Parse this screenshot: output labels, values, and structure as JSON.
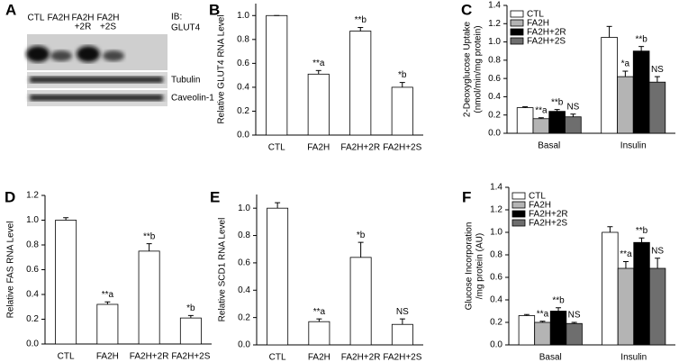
{
  "blot": {
    "panel": "A",
    "lanes": [
      [
        "CTL"
      ],
      [
        "FA2H"
      ],
      [
        "FA2H",
        "+2R"
      ],
      [
        "FA2H",
        "+2S"
      ]
    ],
    "ib": "IB:",
    "rows": [
      "GLUT4",
      "Tubulin",
      "Caveolin-1"
    ]
  },
  "chart_data": [
    {
      "type": "bar",
      "panel": "B",
      "ylabel": [
        "Relative GLUT4 RNA Level"
      ],
      "categories": [
        "CTL",
        "FA2H",
        "FA2H+2R",
        "FA2H+2S"
      ],
      "values": [
        1.0,
        0.51,
        0.87,
        0.4
      ],
      "errors": [
        0.0,
        0.03,
        0.03,
        0.04
      ],
      "bar_labels": [
        null,
        "**a",
        "**b",
        "*b"
      ],
      "color": "#ffffff",
      "ylim": [
        0,
        1.1
      ],
      "yticks": [
        {
          "value": 0,
          "label": "0.0"
        },
        0.2,
        0.4,
        0.6,
        0.8,
        {
          "value": 1,
          "label": "1.0"
        }
      ]
    },
    {
      "type": "grouped_bar",
      "panel": "C",
      "ylabel": [
        "2-Deoxyglucose Uptake",
        "(nmol/min/mg protein)"
      ],
      "categories": [
        "Basal",
        "Insulin"
      ],
      "series": [
        {
          "name": "CTL",
          "color": "#ffffff",
          "values": [
            0.28,
            1.05
          ],
          "errors": [
            0.01,
            0.12
          ],
          "bar_labels": [
            null,
            null
          ]
        },
        {
          "name": "FA2H",
          "color": "#b4b4b4",
          "values": [
            0.16,
            0.62
          ],
          "errors": [
            0.01,
            0.06
          ],
          "bar_labels": [
            "**a",
            "*a"
          ]
        },
        {
          "name": "FA2H+2R",
          "color": "#000000",
          "values": [
            0.24,
            0.9
          ],
          "errors": [
            0.02,
            0.05
          ],
          "bar_labels": [
            "**b",
            "**b"
          ]
        },
        {
          "name": "FA2H+2S",
          "color": "#6e6e6e",
          "values": [
            0.18,
            0.56
          ],
          "errors": [
            0.03,
            0.06
          ],
          "bar_labels": [
            "NS",
            "NS"
          ]
        }
      ],
      "legend": "upper left",
      "ylim": [
        0,
        1.4
      ],
      "yticks": [
        {
          "value": 0,
          "label": "0.0"
        },
        0.2,
        0.4,
        0.6,
        0.8,
        {
          "value": 1,
          "label": "1.0"
        },
        1.2,
        1.4
      ]
    },
    {
      "type": "bar",
      "panel": "D",
      "ylabel": [
        "Relative FAS RNA Level"
      ],
      "categories": [
        "CTL",
        "FA2H",
        "FA2H+2R",
        "FA2H+2S"
      ],
      "values": [
        1.0,
        0.32,
        0.75,
        0.21
      ],
      "errors": [
        0.02,
        0.02,
        0.06,
        0.02
      ],
      "bar_labels": [
        null,
        "**a",
        "**b",
        "*b"
      ],
      "color": "#ffffff",
      "ylim": [
        0,
        1.2
      ],
      "yticks": [
        {
          "value": 0,
          "label": "0.0"
        },
        0.2,
        0.4,
        0.6,
        0.8,
        {
          "value": 1,
          "label": "1.0"
        },
        1.2
      ]
    },
    {
      "type": "bar",
      "panel": "E",
      "ylabel": [
        "Relative SCD1 RNA Level"
      ],
      "categories": [
        "CTL",
        "FA2H",
        "FA2H+2R",
        "FA2H+2S"
      ],
      "values": [
        1.0,
        0.17,
        0.64,
        0.15
      ],
      "errors": [
        0.04,
        0.02,
        0.11,
        0.04
      ],
      "bar_labels": [
        null,
        "**a",
        "*b",
        "NS"
      ],
      "color": "#ffffff",
      "ylim": [
        0,
        1.1
      ],
      "yticks": [
        {
          "value": 0,
          "label": "0.0"
        },
        0.2,
        0.4,
        0.6,
        0.8,
        {
          "value": 1,
          "label": "1.0"
        }
      ]
    },
    {
      "type": "grouped_bar",
      "panel": "F",
      "ylabel": [
        "Glucose Incorporation",
        "/mg protein (AU)"
      ],
      "categories": [
        "Basal",
        "Insulin"
      ],
      "series": [
        {
          "name": "CTL",
          "color": "#ffffff",
          "values": [
            0.26,
            1.0
          ],
          "errors": [
            0.01,
            0.05
          ],
          "bar_labels": [
            null,
            null
          ]
        },
        {
          "name": "FA2H",
          "color": "#b4b4b4",
          "values": [
            0.2,
            0.68
          ],
          "errors": [
            0.01,
            0.06
          ],
          "bar_labels": [
            "**a",
            "**a"
          ]
        },
        {
          "name": "FA2H+2R",
          "color": "#000000",
          "values": [
            0.3,
            0.91
          ],
          "errors": [
            0.03,
            0.04
          ],
          "bar_labels": [
            "**b",
            "**b"
          ]
        },
        {
          "name": "FA2H+2S",
          "color": "#6e6e6e",
          "values": [
            0.19,
            0.68
          ],
          "errors": [
            0.01,
            0.09
          ],
          "bar_labels": [
            "NS",
            "NS"
          ]
        }
      ],
      "legend": "upper left",
      "ylim": [
        0,
        1.4
      ],
      "yticks": [
        {
          "value": 0,
          "label": "0.0"
        },
        0.2,
        0.4,
        0.6,
        0.8,
        {
          "value": 1,
          "label": "1.0"
        },
        1.2,
        1.4
      ]
    }
  ]
}
